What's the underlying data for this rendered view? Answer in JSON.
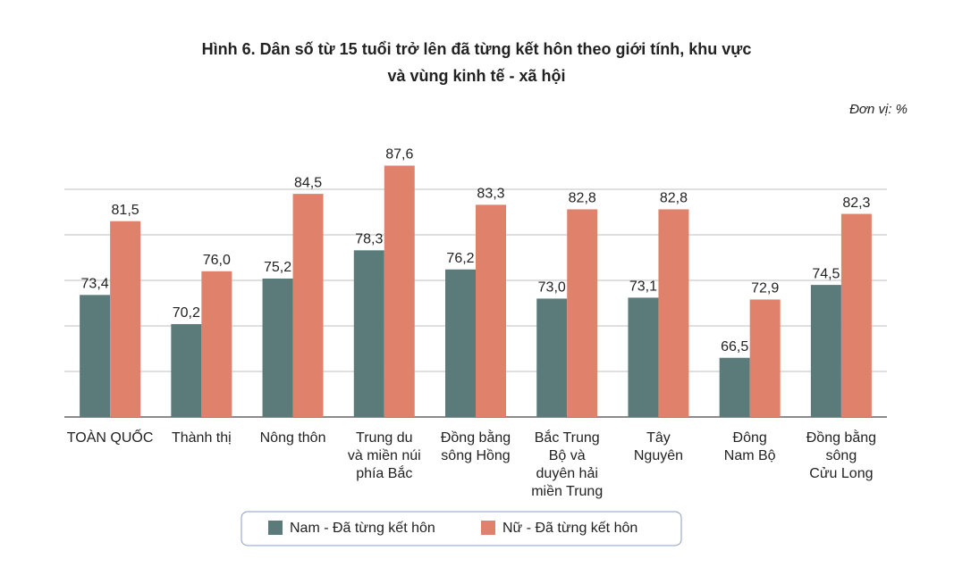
{
  "chart_data": {
    "type": "bar",
    "title": [
      "Hình 6. Dân số từ 15 tuổi trở lên đã từng kết hôn theo giới tính, khu vực",
      "và vùng kinh tế - xã hội"
    ],
    "unit_note": "Đơn vị: %",
    "categories": [
      [
        "TOÀN QUỐC"
      ],
      [
        "Thành thị"
      ],
      [
        "Nông thôn"
      ],
      [
        "Trung du",
        "và miền núi",
        "phía Bắc"
      ],
      [
        "Đồng bằng",
        "sông Hồng"
      ],
      [
        "Bắc Trung",
        "Bộ và",
        "duyên hải",
        "miền Trung"
      ],
      [
        "Tây",
        "Nguyên"
      ],
      [
        "Đông",
        "Nam Bộ"
      ],
      [
        "Đồng bằng",
        "sông",
        "Cửu Long"
      ]
    ],
    "series": [
      {
        "name": "Nam - Đã từng kết hôn",
        "color": "#5b7b7a",
        "values": [
          73.4,
          70.2,
          75.2,
          78.3,
          76.2,
          73.0,
          73.1,
          66.5,
          74.5
        ],
        "value_labels": [
          "73,4",
          "70,2",
          "75,2",
          "78,3",
          "76,2",
          "73,0",
          "73,1",
          "66,5",
          "74,5"
        ]
      },
      {
        "name": "Nữ - Đã từng kết hôn",
        "color": "#e0826b",
        "values": [
          81.5,
          76.0,
          84.5,
          87.6,
          83.3,
          82.8,
          82.8,
          72.9,
          82.3
        ],
        "value_labels": [
          "81,5",
          "76,0",
          "84,5",
          "87,6",
          "83,3",
          "82,8",
          "82,8",
          "72,9",
          "82,3"
        ]
      }
    ],
    "ylim": [
      60,
      90
    ],
    "yticks": [
      60,
      65,
      70,
      75,
      80,
      85
    ],
    "grid": true
  }
}
